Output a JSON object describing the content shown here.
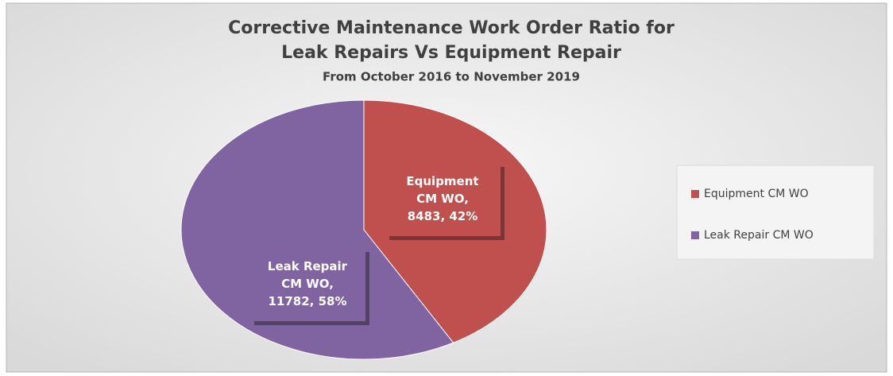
{
  "chart_data": {
    "type": "pie",
    "title": "Corrective Maintenance Work Order Ratio for Leak Repairs Vs Equipment Repair",
    "subtitle": "From October 2016 to November 2019",
    "categories": [
      "Equipment CM WO",
      "Leak Repair CM WO"
    ],
    "values": [
      8483,
      11782
    ],
    "value_labels": [
      "Equipment CM WO, 8483, 42%",
      "Leak Repair CM WO, 11782, 58%"
    ],
    "colors": [
      "#c0504d",
      "#8064a2"
    ],
    "legend": "right"
  }
}
